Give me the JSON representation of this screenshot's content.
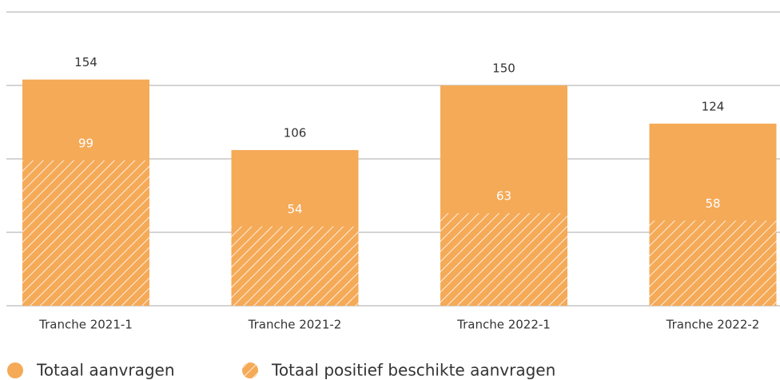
{
  "chart_data": {
    "type": "bar",
    "barmode": "overlay",
    "categories": [
      "Tranche 2021-1",
      "Tranche 2021-2",
      "Tranche 2022-1",
      "Tranche 2022-2"
    ],
    "series": [
      {
        "name": "Totaal aanvragen",
        "color": "#f5aa58",
        "values": [
          154,
          106,
          150,
          124
        ]
      },
      {
        "name": "Totaal positief beschikte aanvragen",
        "color": "#f5aa58",
        "pattern": "hatch",
        "values": [
          99,
          54,
          63,
          58
        ]
      }
    ],
    "ylim": [
      0,
      200
    ],
    "yticks": [
      0,
      50,
      100,
      150,
      200
    ],
    "grid": true,
    "legend": "bottom-left"
  }
}
